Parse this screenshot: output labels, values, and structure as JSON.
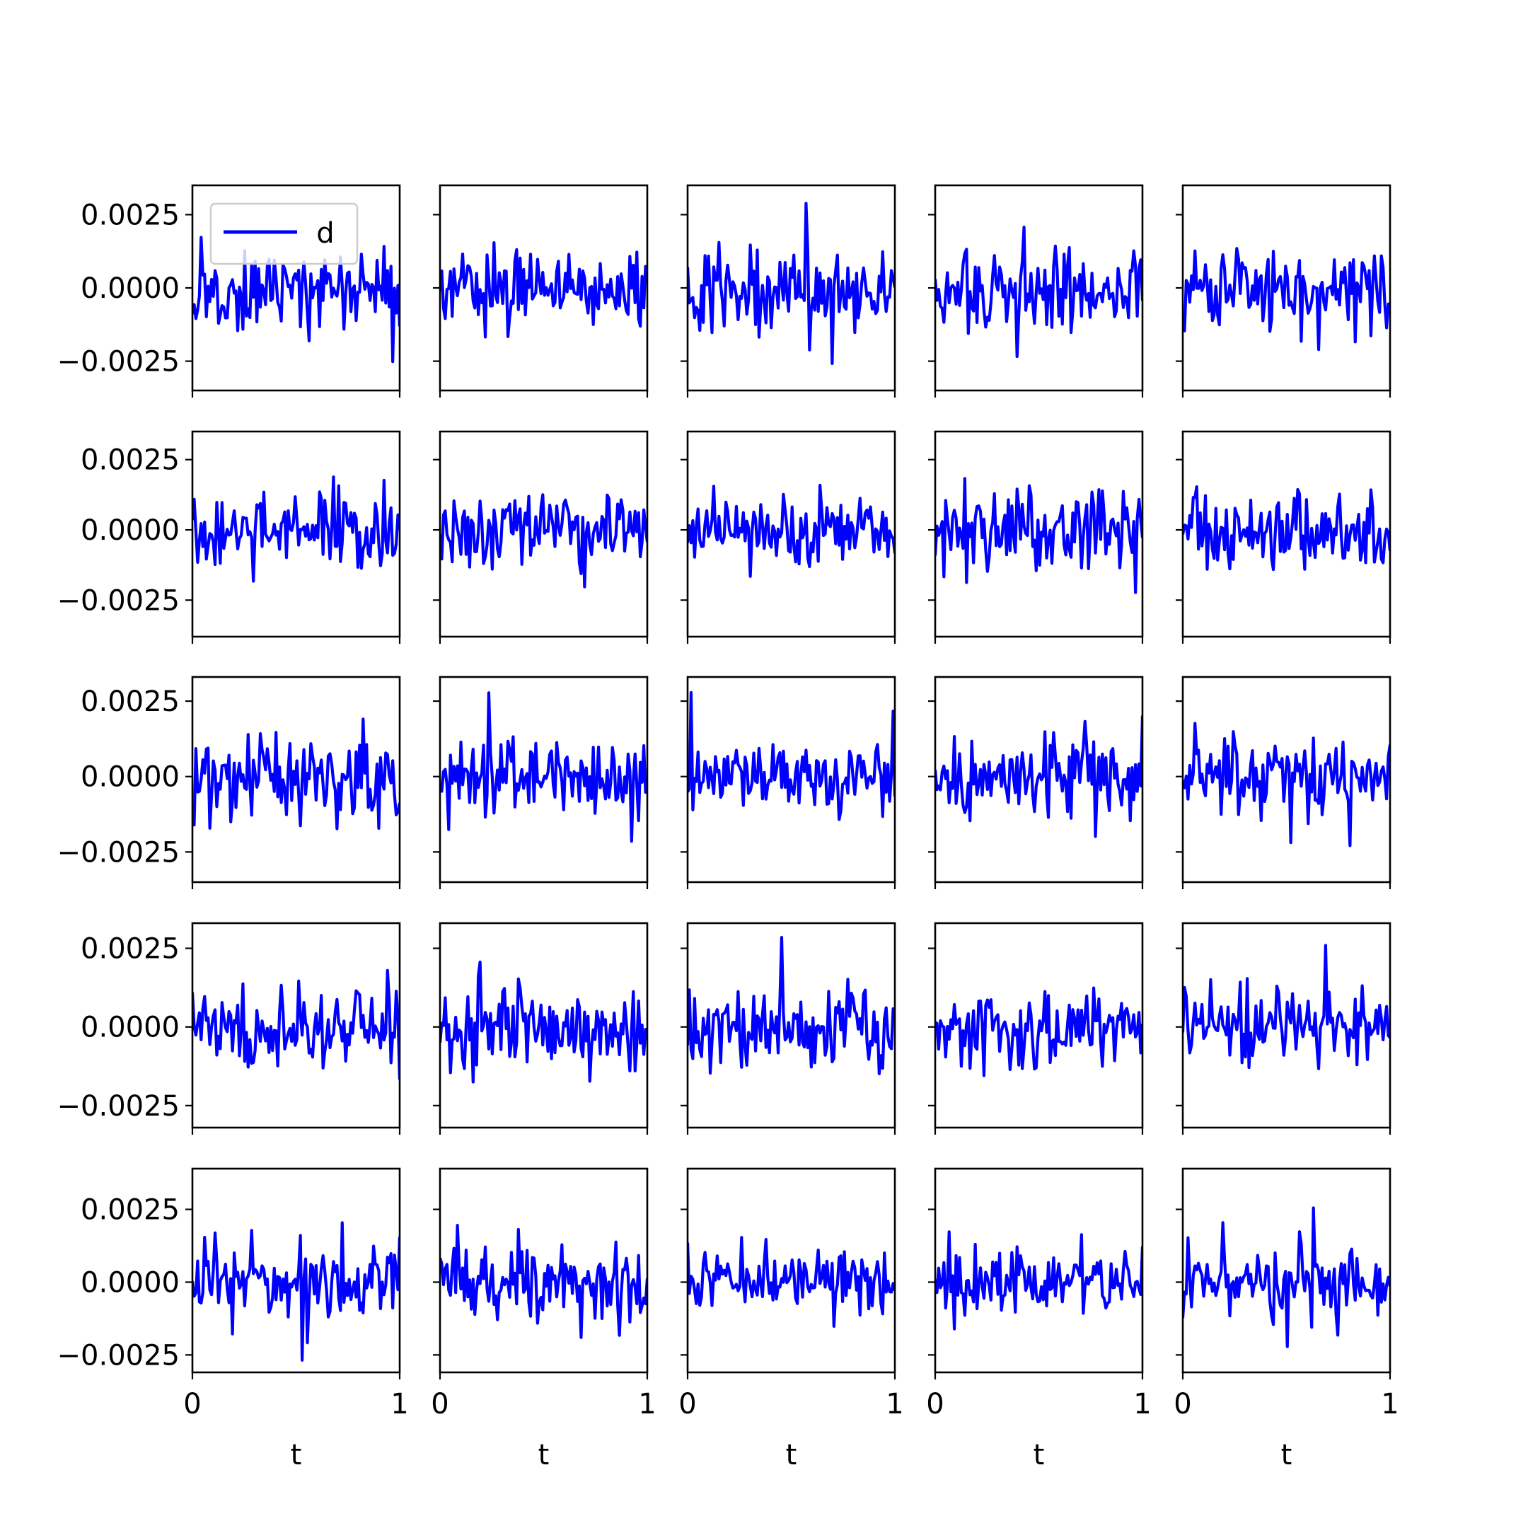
{
  "chart_data": {
    "type": "line",
    "layout": "grid",
    "rows": 5,
    "cols": 5,
    "sharey": "row",
    "points_per_panel": 120,
    "series_name": "d",
    "series_color": "#0000ff",
    "legend_loc": "upper-left",
    "xlabel": "t",
    "xlim": [
      0,
      1
    ],
    "xticks": [
      0,
      1
    ],
    "xtick_labels": [
      "0",
      "1"
    ],
    "row_axes": [
      {
        "ylim": [
          -0.0035,
          0.0035
        ],
        "yticks": [
          -0.0025,
          0.0,
          0.0025
        ],
        "ytick_labels": [
          "−0.0025",
          "0.0000",
          "0.0025"
        ]
      },
      {
        "ylim": [
          -0.0038,
          0.0035
        ],
        "yticks": [
          -0.0025,
          0.0,
          0.0025
        ],
        "ytick_labels": [
          "−0.0025",
          "0.0000",
          "0.0025"
        ]
      },
      {
        "ylim": [
          -0.0035,
          0.0033
        ],
        "yticks": [
          -0.0025,
          0.0,
          0.0025
        ],
        "ytick_labels": [
          "−0.0025",
          "0.0000",
          "0.0025"
        ]
      },
      {
        "ylim": [
          -0.0032,
          0.0033
        ],
        "yticks": [
          -0.0025,
          0.0,
          0.0025
        ],
        "ytick_labels": [
          "−0.0025",
          "0.0000",
          "0.0025"
        ]
      },
      {
        "ylim": [
          -0.0031,
          0.0039
        ],
        "yticks": [
          -0.0025,
          0.0,
          0.0025
        ],
        "ytick_labels": [
          "−0.0025",
          "0.0000",
          "0.0025"
        ]
      }
    ],
    "panels": [
      {
        "row": 0,
        "col": 0,
        "amplitude": 0.00095,
        "seed": 101,
        "legend": true
      },
      {
        "row": 0,
        "col": 1,
        "amplitude": 0.0009,
        "seed": 102
      },
      {
        "row": 0,
        "col": 2,
        "amplitude": 0.001,
        "seed": 103
      },
      {
        "row": 0,
        "col": 3,
        "amplitude": 0.0009,
        "seed": 104
      },
      {
        "row": 0,
        "col": 4,
        "amplitude": 0.0009,
        "seed": 105
      },
      {
        "row": 1,
        "col": 0,
        "amplitude": 0.0009,
        "seed": 201
      },
      {
        "row": 1,
        "col": 1,
        "amplitude": 0.0009,
        "seed": 202
      },
      {
        "row": 1,
        "col": 2,
        "amplitude": 0.00085,
        "seed": 203
      },
      {
        "row": 1,
        "col": 3,
        "amplitude": 0.001,
        "seed": 204
      },
      {
        "row": 1,
        "col": 4,
        "amplitude": 0.00095,
        "seed": 205
      },
      {
        "row": 2,
        "col": 0,
        "amplitude": 0.0009,
        "seed": 301
      },
      {
        "row": 2,
        "col": 1,
        "amplitude": 0.0009,
        "seed": 302
      },
      {
        "row": 2,
        "col": 2,
        "amplitude": 0.00085,
        "seed": 303
      },
      {
        "row": 2,
        "col": 3,
        "amplitude": 0.00095,
        "seed": 304
      },
      {
        "row": 2,
        "col": 4,
        "amplitude": 0.0009,
        "seed": 305
      },
      {
        "row": 3,
        "col": 0,
        "amplitude": 0.00085,
        "seed": 401
      },
      {
        "row": 3,
        "col": 1,
        "amplitude": 0.00095,
        "seed": 402
      },
      {
        "row": 3,
        "col": 2,
        "amplitude": 0.0009,
        "seed": 403
      },
      {
        "row": 3,
        "col": 3,
        "amplitude": 0.0008,
        "seed": 404
      },
      {
        "row": 3,
        "col": 4,
        "amplitude": 0.0009,
        "seed": 405
      },
      {
        "row": 4,
        "col": 0,
        "amplitude": 0.00085,
        "seed": 501
      },
      {
        "row": 4,
        "col": 1,
        "amplitude": 0.00095,
        "seed": 502
      },
      {
        "row": 4,
        "col": 2,
        "amplitude": 0.0008,
        "seed": 503
      },
      {
        "row": 4,
        "col": 3,
        "amplitude": 0.0008,
        "seed": 504
      },
      {
        "row": 4,
        "col": 4,
        "amplitude": 0.00085,
        "seed": 505
      }
    ]
  }
}
